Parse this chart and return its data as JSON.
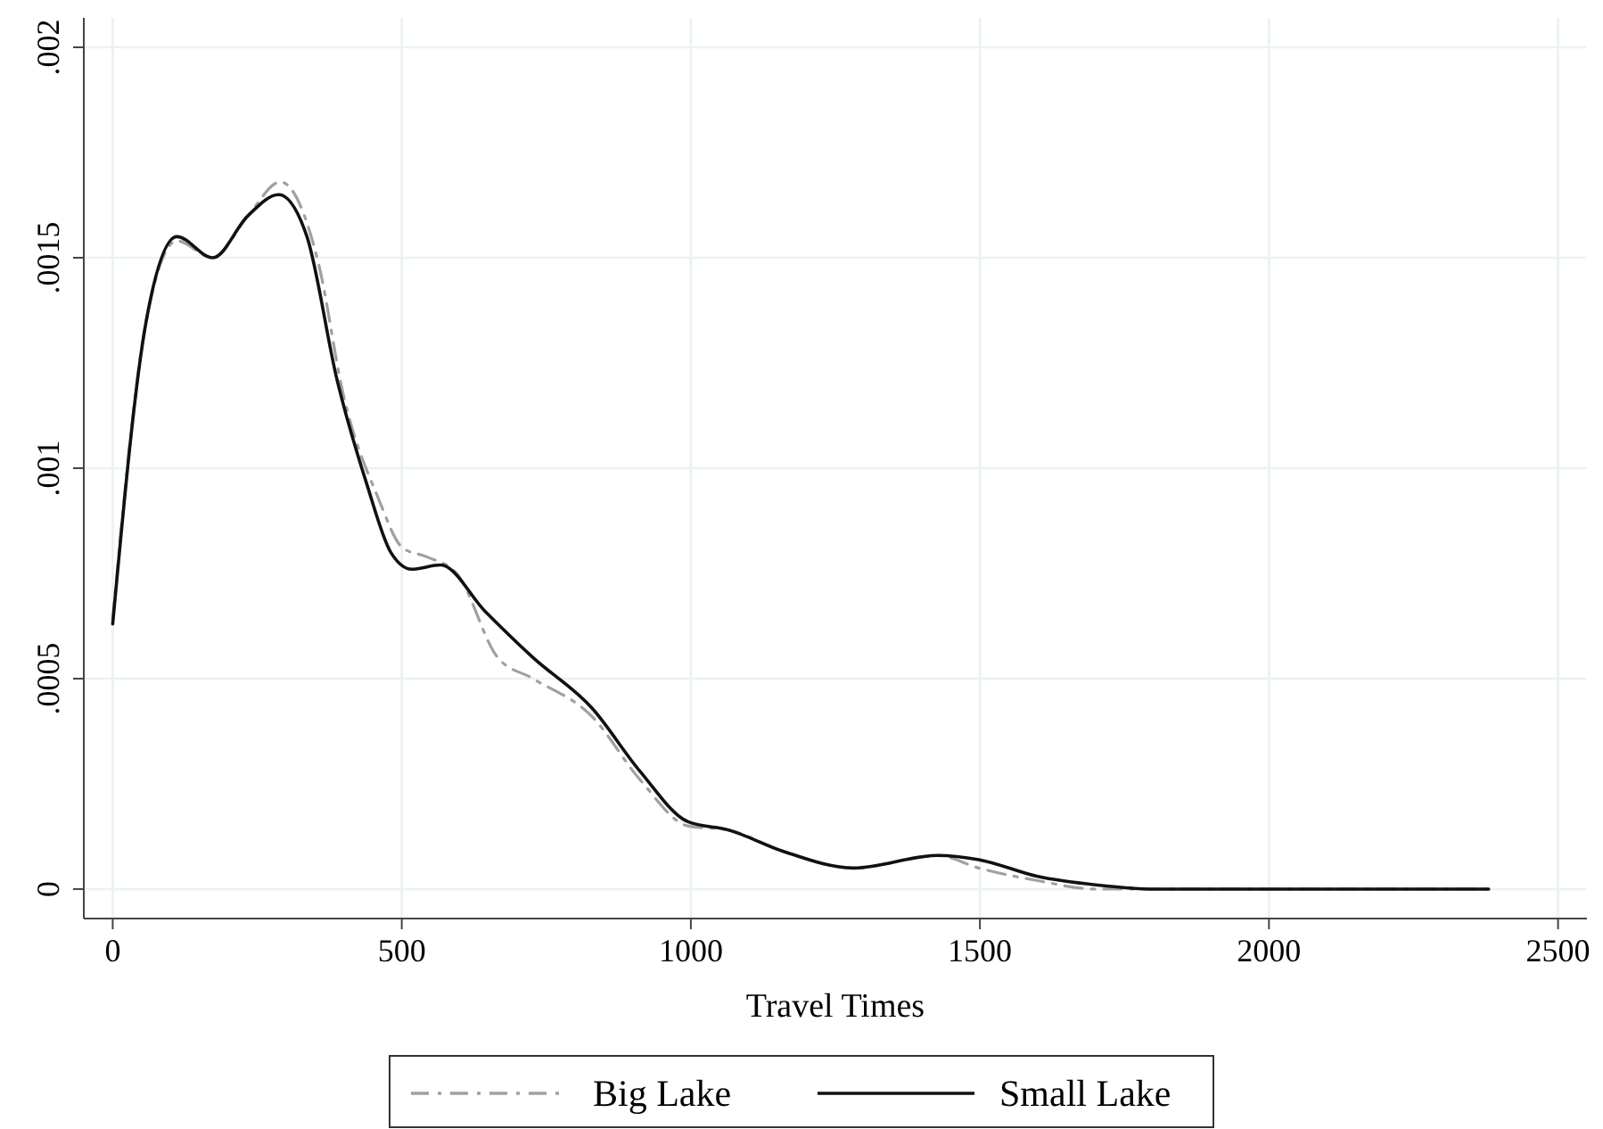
{
  "chart_data": {
    "type": "line",
    "xlabel": "Travel Times",
    "xlim": [
      -50,
      2550
    ],
    "ylim": [
      -7e-05,
      0.00207
    ],
    "xticks": [
      0,
      500,
      1000,
      1500,
      2000,
      2500
    ],
    "yticks": [
      {
        "value": 0,
        "label": "0"
      },
      {
        "value": 0.0005,
        "label": ".0005"
      },
      {
        "value": 0.001,
        "label": ".001"
      },
      {
        "value": 0.0015,
        "label": ".0015"
      },
      {
        "value": 0.002,
        "label": ".002"
      }
    ],
    "grid": true,
    "legend": "bottom",
    "marker": "none",
    "series": [
      {
        "name": "Big Lake",
        "color": "#a0a0a0",
        "line_style": "dashed",
        "x": [
          0,
          58,
          111,
          173,
          234,
          290,
          357,
          398,
          459,
          502,
          542,
          595,
          666,
          727,
          829,
          912,
          995,
          1066,
          1159,
          1282,
          1427,
          1498,
          1600,
          1700,
          1800,
          2100,
          2380
        ],
        "values": [
          0.00064,
          0.00135,
          0.00154,
          0.0015,
          0.0016,
          0.00168,
          0.00148,
          0.00118,
          0.00093,
          0.00081,
          0.00079,
          0.00075,
          0.00055,
          0.0005,
          0.00041,
          0.00026,
          0.00015,
          0.00014,
          9e-05,
          5e-05,
          8e-05,
          5e-05,
          2e-05,
          0,
          0,
          0,
          0
        ]
      },
      {
        "name": "Small Lake",
        "color": "#111111",
        "line_style": "solid",
        "x": [
          0,
          58,
          111,
          173,
          234,
          287,
          336,
          388,
          440,
          481,
          517,
          567,
          644,
          727,
          829,
          912,
          995,
          1066,
          1159,
          1282,
          1427,
          1498,
          1600,
          1700,
          1800,
          2100,
          2380
        ],
        "values": [
          0.00063,
          0.00135,
          0.00155,
          0.0015,
          0.0016,
          0.00165,
          0.00155,
          0.00121,
          0.00096,
          0.0008,
          0.00076,
          0.00077,
          0.00066,
          0.00055,
          0.00043,
          0.00028,
          0.00016,
          0.00014,
          9e-05,
          5e-05,
          8e-05,
          7e-05,
          3e-05,
          1e-05,
          0,
          0,
          0
        ]
      }
    ]
  }
}
